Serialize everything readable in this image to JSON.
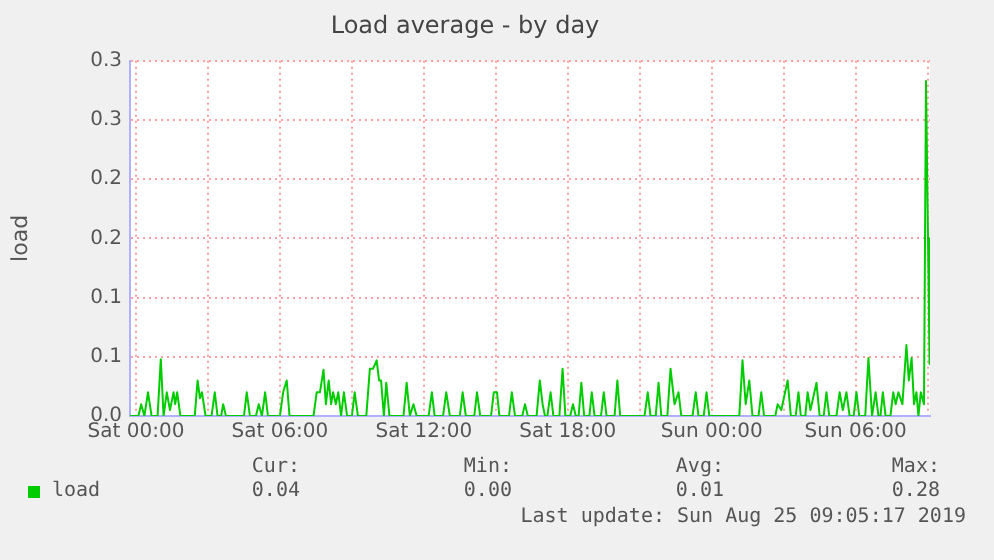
{
  "chart_data": {
    "type": "line",
    "title": "Load average - by day",
    "ylabel": "load",
    "x": [
      "2019-08-23T23:45",
      "2019-08-24T00:06",
      "2019-08-24T00:13",
      "2019-08-24T00:21",
      "2019-08-24T00:30",
      "2019-08-24T00:39",
      "2019-08-24T00:54",
      "2019-08-24T01:02",
      "2019-08-24T01:09",
      "2019-08-24T01:17",
      "2019-08-24T01:25",
      "2019-08-24T01:34",
      "2019-08-24T01:38",
      "2019-08-24T01:43",
      "2019-08-24T01:51",
      "2019-08-24T02:27",
      "2019-08-24T02:34",
      "2019-08-24T02:40",
      "2019-08-24T02:45",
      "2019-08-24T02:54",
      "2019-08-24T03:09",
      "2019-08-24T03:17",
      "2019-08-24T03:24",
      "2019-08-24T03:33",
      "2019-08-24T03:38",
      "2019-08-24T03:45",
      "2019-08-24T04:30",
      "2019-08-24T04:37",
      "2019-08-24T04:45",
      "2019-08-24T05:00",
      "2019-08-24T05:07",
      "2019-08-24T05:15",
      "2019-08-24T05:23",
      "2019-08-24T05:30",
      "2019-08-24T06:00",
      "2019-08-24T06:08",
      "2019-08-24T06:17",
      "2019-08-24T06:24",
      "2019-08-24T07:24",
      "2019-08-24T07:32",
      "2019-08-24T07:40",
      "2019-08-24T07:49",
      "2019-08-24T07:55",
      "2019-08-24T08:02",
      "2019-08-24T08:08",
      "2019-08-24T08:13",
      "2019-08-24T08:20",
      "2019-08-24T08:26",
      "2019-08-24T08:33",
      "2019-08-24T08:40",
      "2019-08-24T08:48",
      "2019-08-24T09:00",
      "2019-08-24T09:07",
      "2019-08-24T09:15",
      "2019-08-24T09:36",
      "2019-08-24T09:45",
      "2019-08-24T09:53",
      "2019-08-24T10:02",
      "2019-08-24T10:08",
      "2019-08-24T10:13",
      "2019-08-24T10:20",
      "2019-08-24T10:26",
      "2019-08-24T10:34",
      "2019-08-24T11:09",
      "2019-08-24T11:17",
      "2019-08-24T11:25",
      "2019-08-24T11:34",
      "2019-08-24T11:42",
      "2019-08-24T12:12",
      "2019-08-24T12:20",
      "2019-08-24T12:27",
      "2019-08-24T12:48",
      "2019-08-24T12:56",
      "2019-08-24T13:05",
      "2019-08-24T13:30",
      "2019-08-24T13:37",
      "2019-08-24T13:45",
      "2019-08-24T14:06",
      "2019-08-24T14:13",
      "2019-08-24T14:21",
      "2019-08-24T14:48",
      "2019-08-24T14:55",
      "2019-08-24T15:03",
      "2019-08-24T15:09",
      "2019-08-24T15:33",
      "2019-08-24T15:40",
      "2019-08-24T15:48",
      "2019-08-24T16:06",
      "2019-08-24T16:13",
      "2019-08-24T16:20",
      "2019-08-24T16:42",
      "2019-08-24T16:50",
      "2019-08-24T16:57",
      "2019-08-24T17:03",
      "2019-08-24T17:09",
      "2019-08-24T17:17",
      "2019-08-24T17:24",
      "2019-08-24T17:39",
      "2019-08-24T17:47",
      "2019-08-24T17:54",
      "2019-08-24T18:06",
      "2019-08-24T18:13",
      "2019-08-24T18:20",
      "2019-08-24T18:27",
      "2019-08-24T18:34",
      "2019-08-24T18:41",
      "2019-08-24T18:54",
      "2019-08-24T19:00",
      "2019-08-24T19:07",
      "2019-08-24T19:23",
      "2019-08-24T19:30",
      "2019-08-24T19:37",
      "2019-08-24T19:57",
      "2019-08-24T20:04",
      "2019-08-24T20:11",
      "2019-08-24T21:12",
      "2019-08-24T21:20",
      "2019-08-24T21:27",
      "2019-08-24T21:40",
      "2019-08-24T21:47",
      "2019-08-24T21:54",
      "2019-08-24T22:09",
      "2019-08-24T22:17",
      "2019-08-24T22:27",
      "2019-08-24T22:37",
      "2019-08-24T22:44",
      "2019-08-24T23:12",
      "2019-08-24T23:20",
      "2019-08-24T23:27",
      "2019-08-24T23:40",
      "2019-08-24T23:47",
      "2019-08-24T23:54",
      "2019-08-25T01:09",
      "2019-08-25T01:17",
      "2019-08-25T01:25",
      "2019-08-25T01:34",
      "2019-08-25T01:42",
      "2019-08-25T01:57",
      "2019-08-25T02:04",
      "2019-08-25T02:11",
      "2019-08-25T02:39",
      "2019-08-25T02:45",
      "2019-08-25T02:54",
      "2019-08-25T03:10",
      "2019-08-25T03:18",
      "2019-08-25T03:30",
      "2019-08-25T03:37",
      "2019-08-25T03:43",
      "2019-08-25T03:54",
      "2019-08-25T04:00",
      "2019-08-25T04:07",
      "2019-08-25T04:22",
      "2019-08-25T04:30",
      "2019-08-25T04:40",
      "2019-08-25T04:47",
      "2019-08-25T04:54",
      "2019-08-25T05:12",
      "2019-08-25T05:20",
      "2019-08-25T05:28",
      "2019-08-25T05:37",
      "2019-08-25T05:45",
      "2019-08-25T05:55",
      "2019-08-25T06:02",
      "2019-08-25T06:09",
      "2019-08-25T06:24",
      "2019-08-25T06:32",
      "2019-08-25T06:41",
      "2019-08-25T06:50",
      "2019-08-25T06:57",
      "2019-08-25T07:02",
      "2019-08-25T07:08",
      "2019-08-25T07:15",
      "2019-08-25T07:27",
      "2019-08-25T07:34",
      "2019-08-25T07:40",
      "2019-08-25T07:47",
      "2019-08-25T07:57",
      "2019-08-25T08:07",
      "2019-08-25T08:13",
      "2019-08-25T08:20",
      "2019-08-25T08:26",
      "2019-08-25T08:32",
      "2019-08-25T08:37",
      "2019-08-25T08:43",
      "2019-08-25T08:51",
      "2019-08-25T08:56",
      "2019-08-25T09:01",
      "2019-08-25T09:05"
    ],
    "series": [
      {
        "name": "load",
        "color": "#00cc00",
        "values": [
          0,
          0,
          0.01,
          0,
          0.02,
          0,
          0,
          0.048,
          0,
          0.02,
          0.005,
          0.02,
          0.01,
          0.02,
          0,
          0,
          0.03,
          0.015,
          0.02,
          0,
          0,
          0.02,
          0,
          0,
          0.01,
          0,
          0,
          0.02,
          0,
          0,
          0.01,
          0,
          0.02,
          0,
          0,
          0.02,
          0.03,
          0,
          0,
          0.02,
          0.02,
          0.039,
          0.01,
          0.03,
          0.01,
          0.02,
          0.01,
          0.02,
          0,
          0.02,
          0,
          0,
          0.02,
          0,
          0,
          0.04,
          0.04,
          0.047,
          0.03,
          0.03,
          0,
          0.028,
          0,
          0,
          0.028,
          0,
          0.01,
          0,
          0,
          0.02,
          0,
          0,
          0.02,
          0,
          0,
          0.02,
          0,
          0,
          0.02,
          0,
          0,
          0.02,
          0.02,
          0,
          0,
          0.02,
          0,
          0,
          0.01,
          0,
          0,
          0.03,
          0.01,
          0,
          0,
          0.02,
          0,
          0,
          0.04,
          0,
          0,
          0.01,
          0,
          0,
          0.028,
          0,
          0,
          0.02,
          0,
          0,
          0.02,
          0,
          0,
          0.03,
          0,
          0,
          0.02,
          0,
          0,
          0.028,
          0,
          0,
          0.04,
          0.01,
          0.02,
          0,
          0,
          0.02,
          0,
          0,
          0.02,
          0,
          0,
          0.047,
          0.01,
          0.03,
          0,
          0,
          0.02,
          0,
          0,
          0.01,
          0.005,
          0.03,
          0,
          0,
          0.02,
          0,
          0,
          0.02,
          0.005,
          0.028,
          0,
          0,
          0.02,
          0,
          0,
          0.02,
          0.005,
          0.02,
          0,
          0,
          0.02,
          0,
          0,
          0.049,
          0,
          0.02,
          0,
          0,
          0.02,
          0,
          0,
          0.02,
          0.01,
          0.02,
          0.01,
          0.06,
          0.03,
          0.049,
          0.01,
          0.02,
          0,
          0.02,
          0.01,
          0.283,
          0.15,
          0.044
        ]
      }
    ],
    "xlim": [
      "2019-08-23T23:45",
      "2019-08-25T09:06"
    ],
    "xticks": [
      {
        "value": "2019-08-24T00:00",
        "label": "Sat 00:00"
      },
      {
        "value": "2019-08-24T03:00",
        "label": null
      },
      {
        "value": "2019-08-24T06:00",
        "label": "Sat 06:00"
      },
      {
        "value": "2019-08-24T09:00",
        "label": null
      },
      {
        "value": "2019-08-24T12:00",
        "label": "Sat 12:00"
      },
      {
        "value": "2019-08-24T15:00",
        "label": null
      },
      {
        "value": "2019-08-24T18:00",
        "label": "Sat 18:00"
      },
      {
        "value": "2019-08-24T21:00",
        "label": null
      },
      {
        "value": "2019-08-25T00:00",
        "label": "Sun 00:00"
      },
      {
        "value": "2019-08-25T03:00",
        "label": null
      },
      {
        "value": "2019-08-25T06:00",
        "label": "Sun 06:00"
      },
      {
        "value": "2019-08-25T09:00",
        "label": null
      }
    ],
    "ylim": [
      0,
      0.3
    ],
    "yticks": [
      {
        "value": 0,
        "label": "0.0"
      },
      {
        "value": 0.05,
        "label": "0.1"
      },
      {
        "value": 0.1,
        "label": "0.1"
      },
      {
        "value": 0.15,
        "label": "0.2"
      },
      {
        "value": 0.2,
        "label": "0.2"
      },
      {
        "value": 0.25,
        "label": "0.3"
      },
      {
        "value": 0.3,
        "label": "0.3"
      }
    ],
    "grid": true,
    "legend": "bottom left",
    "annotations": [
      "Cur:",
      "Min:",
      "Avg:",
      "Max:",
      "0.04",
      "0.00",
      "0.01",
      "0.28",
      "Last update: Sun Aug 25 09:05:17 2019"
    ]
  }
}
